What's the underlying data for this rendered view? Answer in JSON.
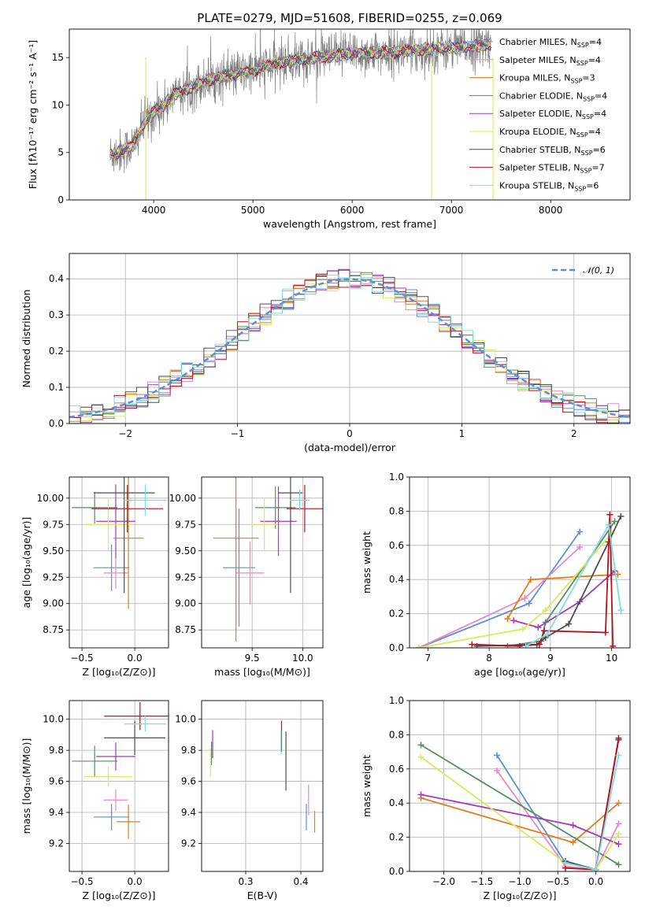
{
  "figure_title": "PLATE=0279, MJD=51608, FIBERID=0255, z=0.069",
  "colors": {
    "Chabrier MILES": "#5b8fd6",
    "Salpeter MILES": "#e58ac3",
    "Kroupa MILES": "#e07b22",
    "Chabrier ELODIE": "#5a8a68",
    "Salpeter ELODIE": "#a13cb5",
    "Kroupa ELODIE": "#d6ea5c",
    "Chabrier STELIB": "#4d4d4d",
    "Salpeter STELIB": "#b3141e",
    "Kroupa STELIB": "#7fdde6",
    "data": "#808080",
    "normal": "#5b8fd6"
  },
  "chart_data": [
    {
      "id": "spectrum",
      "type": "line",
      "title": "PLATE=0279, MJD=51608, FIBERID=0255, z=0.069",
      "xlabel": "wavelength [Angstrom, rest frame]",
      "ylabel": "Flux [fλ10⁻¹⁷ erg cm⁻² s⁻¹ A⁻¹]",
      "xlim": [
        3150,
        8800
      ],
      "ylim": [
        0,
        18
      ],
      "xticks": [
        4000,
        5000,
        6000,
        7000,
        8000
      ],
      "yticks": [
        0,
        5,
        10,
        15
      ],
      "grid": false,
      "legend_position": "right",
      "legend": [
        {
          "label": "Chabrier MILES, N",
          "sub": "SSP",
          "suffix": "=4"
        },
        {
          "label": "Salpeter MILES, N",
          "sub": "SSP",
          "suffix": "=4"
        },
        {
          "label": "Kroupa MILES, N",
          "sub": "SSP",
          "suffix": "=3"
        },
        {
          "label": "Chabrier ELODIE, N",
          "sub": "SSP",
          "suffix": "=4"
        },
        {
          "label": "Salpeter ELODIE, N",
          "sub": "SSP",
          "suffix": "=4"
        },
        {
          "label": "Kroupa ELODIE, N",
          "sub": "SSP",
          "suffix": "=4"
        },
        {
          "label": "Chabrier STELIB, N",
          "sub": "SSP",
          "suffix": "=6"
        },
        {
          "label": "Salpeter STELIB, N",
          "sub": "SSP",
          "suffix": "=7"
        },
        {
          "label": "Kroupa STELIB, N",
          "sub": "SSP",
          "suffix": "=6"
        }
      ],
      "continuum": {
        "x": [
          3560,
          3700,
          3800,
          3900,
          4000,
          4100,
          4200,
          4400,
          4600,
          4800,
          5000,
          5200,
          5500,
          5800,
          6000,
          6300,
          6600,
          6800,
          7000,
          7200,
          7400
        ],
        "y": [
          4.8,
          5.2,
          5.8,
          8.0,
          9.2,
          10.0,
          11.0,
          12.0,
          12.8,
          13.2,
          13.6,
          14.3,
          14.8,
          15.2,
          15.4,
          15.5,
          15.7,
          15.9,
          16.0,
          16.2,
          16.4
        ]
      }
    },
    {
      "id": "residuals",
      "type": "histogram",
      "xlabel": "(data-model)/error",
      "ylabel": "Normed distribution",
      "xlim": [
        -2.5,
        2.5
      ],
      "ylim": [
        0,
        0.47
      ],
      "xticks": [
        -2,
        -1,
        0,
        1,
        2
      ],
      "yticks": [
        0.0,
        0.1,
        0.2,
        0.3,
        0.4
      ],
      "grid": true,
      "legend": [
        {
          "label": "𝒩(0, 1)",
          "style": "dashed"
        }
      ],
      "bin_width": 0.1
    },
    {
      "id": "age_vs_Z",
      "type": "errorbar",
      "xlabel": "Z [log₁₀(Z/Z⊙)]",
      "ylabel": "age  [log₁₀(age/yr)]",
      "xlim": [
        -0.62,
        0.32
      ],
      "ylim": [
        8.58,
        10.2
      ],
      "xticks": [
        -0.5,
        0.0
      ],
      "yticks": [
        8.75,
        9.0,
        9.25,
        9.5,
        9.75,
        10.0
      ],
      "grid": true,
      "points": [
        {
          "model": "Chabrier MILES",
          "x": -0.22,
          "xerr": 0.34,
          "y": 9.34,
          "yerr": 0.44
        },
        {
          "model": "Salpeter MILES",
          "x": -0.18,
          "xerr": 0.23,
          "y": 9.29,
          "yerr": 0.3
        },
        {
          "model": "Kroupa MILES",
          "x": -0.06,
          "xerr": 0.29,
          "y": 9.62,
          "yerr": 1.34
        },
        {
          "model": "Chabrier ELODIE",
          "x": -0.38,
          "xerr": 0.43,
          "y": 9.91,
          "yerr": 0.3
        },
        {
          "model": "Salpeter ELODIE",
          "x": -0.18,
          "xerr": 0.37,
          "y": 9.78,
          "yerr": 0.7
        },
        {
          "model": "Kroupa ELODIE",
          "x": -0.25,
          "xerr": 0.46,
          "y": 9.75,
          "yerr": 0.5
        },
        {
          "model": "Chabrier STELIB",
          "x": -0.1,
          "xerr": 0.58,
          "y": 10.05,
          "yerr": 1.9
        },
        {
          "model": "Salpeter STELIB",
          "x": -0.07,
          "xerr": 0.68,
          "y": 9.9,
          "yerr": 0.45
        },
        {
          "model": "Kroupa STELIB",
          "x": 0.1,
          "xerr": 0.4,
          "y": 9.98,
          "yerr": 0.3
        }
      ]
    },
    {
      "id": "age_vs_mass",
      "type": "errorbar",
      "xlabel": "mass [log₁₀(M/M⊙)]",
      "ylabel": "",
      "xlim": [
        9.0,
        10.2
      ],
      "ylim": [
        8.58,
        10.2
      ],
      "xticks": [
        9.5,
        10.0
      ],
      "yticks": [
        8.75,
        9.0,
        9.25,
        9.5,
        9.75,
        10.0
      ],
      "grid": true,
      "points": [
        {
          "model": "Chabrier MILES",
          "x": 9.37,
          "xerr": 0.32,
          "y": 9.34,
          "yerr": 1.12
        },
        {
          "model": "Salpeter MILES",
          "x": 9.48,
          "xerr": 0.28,
          "y": 9.29,
          "yerr": 0.6
        },
        {
          "model": "Kroupa MILES",
          "x": 9.34,
          "xerr": 0.45,
          "y": 9.62,
          "yerr": 1.96
        },
        {
          "model": "Chabrier ELODIE",
          "x": 9.73,
          "xerr": 0.4,
          "y": 9.91,
          "yerr": 0.4
        },
        {
          "model": "Salpeter ELODIE",
          "x": 9.76,
          "xerr": 0.36,
          "y": 9.78,
          "yerr": 0.66
        },
        {
          "model": "Kroupa ELODIE",
          "x": 9.62,
          "xerr": 0.26,
          "y": 9.75,
          "yerr": 0.5
        },
        {
          "model": "Chabrier STELIB",
          "x": 9.88,
          "xerr": 0.24,
          "y": 10.05,
          "yerr": 1.9
        },
        {
          "model": "Salpeter STELIB",
          "x": 10.02,
          "xerr": 0.36,
          "y": 9.9,
          "yerr": 0.45
        },
        {
          "model": "Kroupa STELIB",
          "x": 9.97,
          "xerr": 0.2,
          "y": 9.98,
          "yerr": 0.2
        }
      ]
    },
    {
      "id": "weight_vs_age",
      "type": "line",
      "xlabel": "age  [log₁₀(age/yr)]",
      "ylabel": "mass weight",
      "xlim": [
        6.7,
        10.3
      ],
      "ylim": [
        0,
        1.0
      ],
      "xticks": [
        7,
        8,
        9,
        10
      ],
      "yticks": [
        0.0,
        0.2,
        0.4,
        0.6,
        0.8,
        1.0
      ],
      "grid": true,
      "series": [
        {
          "model": "Chabrier MILES",
          "x": [
            6.85,
            8.65,
            9.48
          ],
          "y": [
            0.0,
            0.26,
            0.68
          ]
        },
        {
          "model": "Salpeter MILES",
          "x": [
            6.85,
            8.58,
            9.48
          ],
          "y": [
            0.0,
            0.29,
            0.59
          ]
        },
        {
          "model": "Kroupa MILES",
          "x": [
            8.3,
            8.68,
            10.1
          ],
          "y": [
            0.17,
            0.4,
            0.43
          ]
        },
        {
          "model": "Chabrier ELODIE",
          "x": [
            8.3,
            8.85,
            8.92,
            10.05
          ],
          "y": [
            0.01,
            0.04,
            0.15,
            0.74
          ]
        },
        {
          "model": "Salpeter ELODIE",
          "x": [
            8.4,
            8.8,
            9.48,
            10.05
          ],
          "y": [
            0.16,
            0.12,
            0.27,
            0.45
          ]
        },
        {
          "model": "Kroupa ELODIE",
          "x": [
            6.85,
            8.55,
            8.92,
            10.0
          ],
          "y": [
            0.0,
            0.11,
            0.22,
            0.67
          ]
        },
        {
          "model": "Chabrier STELIB",
          "x": [
            7.8,
            8.78,
            8.92,
            9.3,
            9.95,
            10.15
          ],
          "y": [
            0.01,
            0.02,
            0.06,
            0.14,
            0.62,
            0.77
          ]
        },
        {
          "model": "Salpeter STELIB",
          "x": [
            7.72,
            8.5,
            8.82,
            8.9,
            9.9,
            9.97,
            10.02
          ],
          "y": [
            0.02,
            0.01,
            0.02,
            0.1,
            0.09,
            0.78,
            0.01
          ]
        },
        {
          "model": "Kroupa STELIB",
          "x": [
            8.6,
            8.95,
            9.95,
            10.15
          ],
          "y": [
            0.01,
            0.08,
            0.72,
            0.22
          ]
        }
      ]
    },
    {
      "id": "mass_vs_Z",
      "type": "errorbar",
      "xlabel": "Z [log₁₀(Z/Z⊙)]",
      "ylabel": "mass [log₁₀(M/M⊙)]",
      "xlim": [
        -0.62,
        0.32
      ],
      "ylim": [
        9.02,
        10.12
      ],
      "xticks": [
        -0.5,
        0.0
      ],
      "yticks": [
        9.2,
        9.4,
        9.6,
        9.8,
        10.0
      ],
      "grid": true,
      "points": [
        {
          "model": "Chabrier MILES",
          "x": -0.22,
          "xerr": 0.34,
          "y": 9.37,
          "yerr": 0.17
        },
        {
          "model": "Salpeter MILES",
          "x": -0.18,
          "xerr": 0.23,
          "y": 9.48,
          "yerr": 0.14
        },
        {
          "model": "Kroupa MILES",
          "x": -0.06,
          "xerr": 0.22,
          "y": 9.34,
          "yerr": 0.22
        },
        {
          "model": "Chabrier ELODIE",
          "x": -0.38,
          "xerr": 0.43,
          "y": 9.73,
          "yerr": 0.2
        },
        {
          "model": "Salpeter ELODIE",
          "x": -0.18,
          "xerr": 0.37,
          "y": 9.76,
          "yerr": 0.18
        },
        {
          "model": "Kroupa ELODIE",
          "x": -0.25,
          "xerr": 0.46,
          "y": 9.63,
          "yerr": 0.13
        },
        {
          "model": "Chabrier STELIB",
          "x": 0.0,
          "xerr": 0.58,
          "y": 9.88,
          "yerr": 0.22
        },
        {
          "model": "Salpeter STELIB",
          "x": 0.05,
          "xerr": 0.68,
          "y": 10.02,
          "yerr": 0.18
        },
        {
          "model": "Kroupa STELIB",
          "x": 0.1,
          "xerr": 0.4,
          "y": 9.97,
          "yerr": 0.1
        }
      ]
    },
    {
      "id": "mass_vs_ebv",
      "type": "errorbar",
      "xlabel": "E(B-V)",
      "ylabel": "",
      "xlim": [
        0.22,
        0.44
      ],
      "ylim": [
        9.02,
        10.12
      ],
      "xticks": [
        0.3,
        0.4
      ],
      "yticks": [
        9.2,
        9.4,
        9.6,
        9.8,
        10.0
      ],
      "grid": true,
      "points": [
        {
          "model": "Chabrier MILES",
          "x": 0.41,
          "xerr": 0.0,
          "y": 9.37,
          "yerr": 0.17
        },
        {
          "model": "Salpeter MILES",
          "x": 0.414,
          "xerr": 0.0,
          "y": 9.48,
          "yerr": 0.2
        },
        {
          "model": "Kroupa MILES",
          "x": 0.425,
          "xerr": 0.0,
          "y": 9.34,
          "yerr": 0.14
        },
        {
          "model": "Chabrier ELODIE",
          "x": 0.238,
          "xerr": 0.0,
          "y": 9.78,
          "yerr": 0.15
        },
        {
          "model": "Salpeter ELODIE",
          "x": 0.24,
          "xerr": 0.0,
          "y": 9.84,
          "yerr": 0.18
        },
        {
          "model": "Kroupa ELODIE",
          "x": 0.236,
          "xerr": 0.0,
          "y": 9.72,
          "yerr": 0.18
        },
        {
          "model": "Chabrier STELIB",
          "x": 0.373,
          "xerr": 0.0,
          "y": 9.73,
          "yerr": 0.38
        },
        {
          "model": "Salpeter STELIB",
          "x": 0.365,
          "xerr": 0.0,
          "y": 9.89,
          "yerr": 0.2
        },
        {
          "model": "Kroupa STELIB",
          "x": 0.364,
          "xerr": 0.0,
          "y": 9.85,
          "yerr": 0.15
        }
      ]
    },
    {
      "id": "weight_vs_Z",
      "type": "line",
      "xlabel": "Z [log₁₀(Z/Z⊙)]",
      "ylabel": "mass weight",
      "xlim": [
        -2.45,
        0.45
      ],
      "ylim": [
        0,
        1.0
      ],
      "xticks": [
        -2.0,
        -1.5,
        -1.0,
        -0.5,
        0.0
      ],
      "yticks": [
        0.0,
        0.2,
        0.4,
        0.6,
        0.8,
        1.0
      ],
      "grid": true,
      "series": [
        {
          "model": "Chabrier MILES",
          "x": [
            -1.3,
            -0.4,
            0.0
          ],
          "y": [
            0.68,
            0.05,
            0.01
          ]
        },
        {
          "model": "Salpeter MILES",
          "x": [
            -1.3,
            -0.4,
            0.0,
            0.3
          ],
          "y": [
            0.59,
            0.03,
            0.01,
            0.28
          ]
        },
        {
          "model": "Kroupa MILES",
          "x": [
            -2.3,
            -0.3,
            0.3
          ],
          "y": [
            0.43,
            0.17,
            0.4
          ]
        },
        {
          "model": "Chabrier ELODIE",
          "x": [
            -2.3,
            0.3
          ],
          "y": [
            0.74,
            0.04
          ]
        },
        {
          "model": "Salpeter ELODIE",
          "x": [
            -2.3,
            -0.3,
            0.3
          ],
          "y": [
            0.45,
            0.27,
            0.16
          ]
        },
        {
          "model": "Kroupa ELODIE",
          "x": [
            -2.3,
            -0.4,
            0.0,
            0.3
          ],
          "y": [
            0.67,
            0.05,
            0.01,
            0.22
          ]
        },
        {
          "model": "Chabrier STELIB",
          "x": [
            -0.4,
            0.0,
            0.3
          ],
          "y": [
            0.06,
            0.01,
            0.77
          ]
        },
        {
          "model": "Salpeter STELIB",
          "x": [
            -0.4,
            0.0,
            0.3
          ],
          "y": [
            0.02,
            0.01,
            0.78
          ]
        },
        {
          "model": "Kroupa STELIB",
          "x": [
            -0.4,
            0.0,
            0.3
          ],
          "y": [
            0.05,
            0.01,
            0.68
          ]
        }
      ]
    }
  ]
}
